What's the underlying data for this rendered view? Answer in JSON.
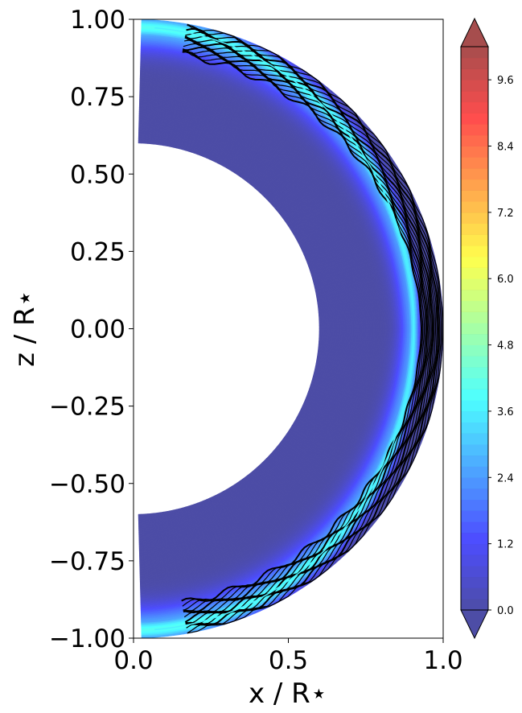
{
  "chart_data": {
    "type": "heatmap",
    "subtype": "filled-contour (meridional half-shell)",
    "title": "",
    "xlabel": "x / R⋆",
    "ylabel": "z / R⋆",
    "xlim": [
      0.0,
      1.0
    ],
    "ylim": [
      -1.0,
      1.0
    ],
    "x_ticks": [
      "0.0",
      "0.5",
      "1.0"
    ],
    "y_ticks": [
      "1.00",
      "0.75",
      "0.50",
      "0.25",
      "0.00",
      "−0.25",
      "−0.50",
      "−0.75",
      "−1.00"
    ],
    "shell": {
      "r_inner": 0.6,
      "r_outer": 1.0,
      "theta_min_deg": 1.5,
      "theta_max_deg": 178.5
    },
    "colorbar": {
      "colormap": "jet (alpha 0.7)",
      "min": 0.0,
      "max": 10.2,
      "extend": "both",
      "ticks": [
        "0.0",
        "1.2",
        "2.4",
        "3.6",
        "4.8",
        "6.0",
        "7.2",
        "8.4",
        "9.6"
      ],
      "n_levels": 51
    },
    "field_description": {
      "background_value": 0.0,
      "peak_value_near_poles": 4.0,
      "peak_value_equator": 3.5,
      "contour_line_color": "#000000",
      "grid": false
    }
  }
}
